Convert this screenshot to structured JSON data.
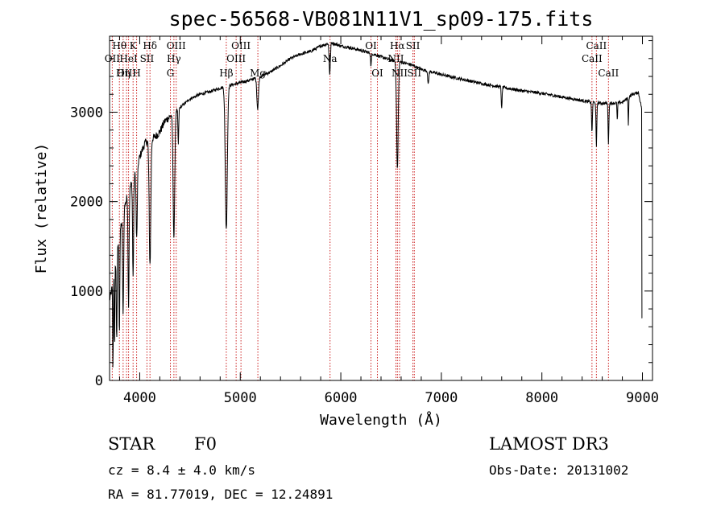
{
  "chart_data": {
    "type": "line",
    "title": "spec-56568-VB081N11V1_sp09-175.fits",
    "xlabel": "Wavelength (Å)",
    "ylabel": "Flux (relative)",
    "xlim": [
      3700,
      9100
    ],
    "ylim": [
      0,
      3850
    ],
    "xticks": [
      4000,
      5000,
      6000,
      7000,
      8000,
      9000
    ],
    "yticks": [
      0,
      1000,
      2000,
      3000
    ],
    "series": [
      {
        "name": "spectrum",
        "continuum": [
          [
            3700,
            900
          ],
          [
            3720,
            1000
          ],
          [
            3750,
            1250
          ],
          [
            3800,
            1650
          ],
          [
            3850,
            1950
          ],
          [
            3900,
            2150
          ],
          [
            3950,
            2300
          ],
          [
            4000,
            2500
          ],
          [
            4050,
            2650
          ],
          [
            4100,
            2700
          ],
          [
            4150,
            2720
          ],
          [
            4200,
            2780
          ],
          [
            4250,
            2900
          ],
          [
            4300,
            2950
          ],
          [
            4400,
            3050
          ],
          [
            4500,
            3150
          ],
          [
            4600,
            3200
          ],
          [
            4700,
            3230
          ],
          [
            4800,
            3270
          ],
          [
            4900,
            3300
          ],
          [
            5000,
            3330
          ],
          [
            5100,
            3360
          ],
          [
            5200,
            3400
          ],
          [
            5300,
            3450
          ],
          [
            5400,
            3520
          ],
          [
            5500,
            3600
          ],
          [
            5600,
            3650
          ],
          [
            5700,
            3680
          ],
          [
            5800,
            3740
          ],
          [
            5900,
            3780
          ],
          [
            6000,
            3740
          ],
          [
            6100,
            3720
          ],
          [
            6200,
            3690
          ],
          [
            6300,
            3660
          ],
          [
            6400,
            3620
          ],
          [
            6500,
            3580
          ],
          [
            6600,
            3560
          ],
          [
            6700,
            3530
          ],
          [
            6800,
            3480
          ],
          [
            6900,
            3450
          ],
          [
            7000,
            3420
          ],
          [
            7200,
            3370
          ],
          [
            7400,
            3320
          ],
          [
            7600,
            3280
          ],
          [
            7800,
            3240
          ],
          [
            8000,
            3210
          ],
          [
            8200,
            3170
          ],
          [
            8400,
            3130
          ],
          [
            8500,
            3110
          ],
          [
            8600,
            3100
          ],
          [
            8700,
            3100
          ],
          [
            8800,
            3110
          ],
          [
            8900,
            3200
          ],
          [
            8960,
            3220
          ],
          [
            9000,
            3000
          ]
        ],
        "absorption": [
          [
            3734,
            1000,
            3
          ],
          [
            3750,
            900,
            3
          ],
          [
            3771,
            950,
            4
          ],
          [
            3798,
            1100,
            4
          ],
          [
            3835,
            1150,
            5
          ],
          [
            3889,
            1250,
            5
          ],
          [
            3934,
            1100,
            5
          ],
          [
            3970,
            800,
            6
          ],
          [
            4102,
            1400,
            8
          ],
          [
            4340,
            1400,
            8
          ],
          [
            4384,
            400,
            4
          ],
          [
            4861,
            1600,
            10
          ],
          [
            5173,
            350,
            8
          ],
          [
            5890,
            350,
            6
          ],
          [
            6300,
            150,
            4
          ],
          [
            6563,
            1200,
            8
          ],
          [
            6870,
            150,
            5
          ],
          [
            7600,
            250,
            4
          ],
          [
            8498,
            350,
            4
          ],
          [
            8542,
            500,
            4
          ],
          [
            8662,
            450,
            4
          ],
          [
            8750,
            200,
            3
          ],
          [
            8860,
            300,
            3
          ]
        ]
      }
    ],
    "line_markers": [
      {
        "name": "Hθ",
        "wavelength": 3798,
        "row": 1
      },
      {
        "name": "K",
        "wavelength": 3934,
        "row": 1
      },
      {
        "name": "Hδ",
        "wavelength": 4102,
        "row": 1
      },
      {
        "name": "OII",
        "wavelength": 3727,
        "row": 2
      },
      {
        "name": "HeI",
        "wavelength": 3889,
        "row": 2
      },
      {
        "name": "SII",
        "wavelength": 4072,
        "row": 2
      },
      {
        "name": "OIII",
        "wavelength": 3869,
        "row": 3
      },
      {
        "name": "Hη",
        "wavelength": 3835,
        "row": 3
      },
      {
        "name": "H",
        "wavelength": 3969,
        "row": 3
      },
      {
        "name": "OIII",
        "wavelength": 4363,
        "row": 1
      },
      {
        "name": "Hγ",
        "wavelength": 4340,
        "row": 2
      },
      {
        "name": "G",
        "wavelength": 4305,
        "row": 3
      },
      {
        "name": "Hβ",
        "wavelength": 4861,
        "row": 3
      },
      {
        "name": "OIII",
        "wavelength": 5007,
        "row": 1
      },
      {
        "name": "OIII",
        "wavelength": 4959,
        "row": 2
      },
      {
        "name": "Mg",
        "wavelength": 5175,
        "row": 3
      },
      {
        "name": "Na",
        "wavelength": 5893,
        "row": 2
      },
      {
        "name": "OI",
        "wavelength": 6300,
        "row": 1
      },
      {
        "name": "OI",
        "wavelength": 6364,
        "row": 3
      },
      {
        "name": "Hα",
        "wavelength": 6563,
        "row": 1
      },
      {
        "name": "SII",
        "wavelength": 6717,
        "row": 1
      },
      {
        "name": "NII",
        "wavelength": 6548,
        "row": 2
      },
      {
        "name": "SII",
        "wavelength": 6731,
        "row": 3
      },
      {
        "name": "NII",
        "wavelength": 6584,
        "row": 3
      },
      {
        "name": "CaII",
        "wavelength": 8542,
        "row": 1
      },
      {
        "name": "CaII",
        "wavelength": 8498,
        "row": 2
      },
      {
        "name": "CaII",
        "wavelength": 8662,
        "row": 3
      }
    ]
  },
  "info": {
    "object_class": "STAR",
    "subclass": "F0",
    "survey": "LAMOST DR3",
    "redshift_text": "cz = 8.4 ± 4.0 km/s",
    "obs_date_text": "Obs-Date: 20131002",
    "coords_text": "RA =  81.77019, DEC =  12.24891"
  }
}
